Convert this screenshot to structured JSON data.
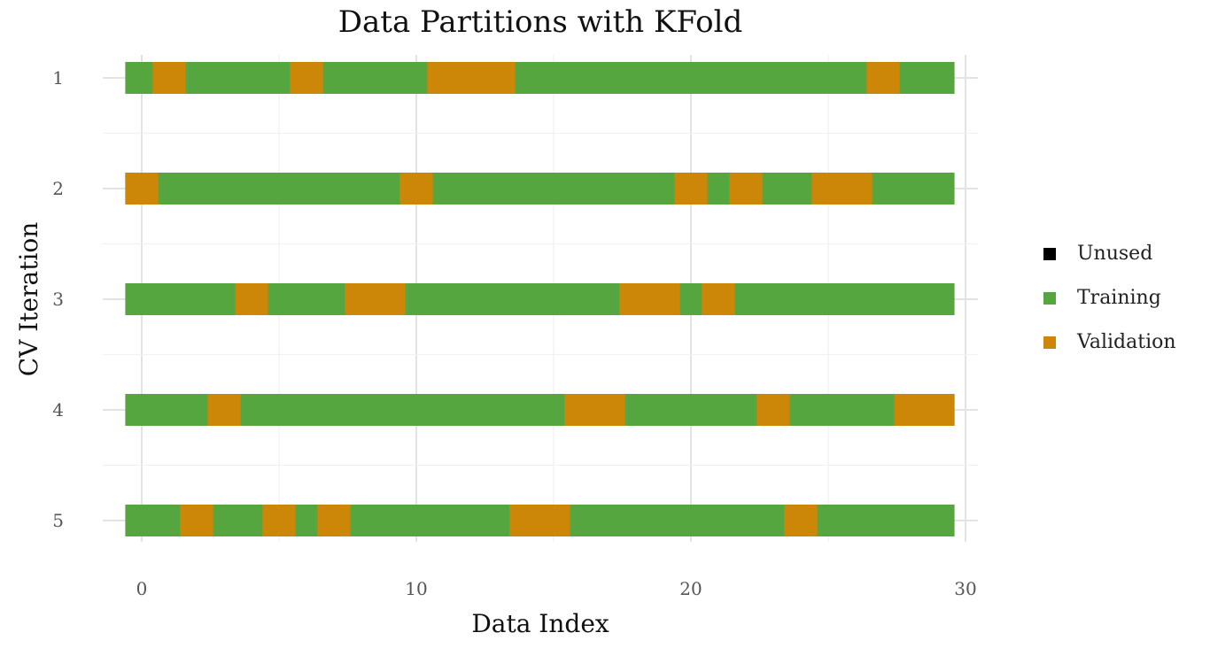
{
  "chart_data": {
    "type": "bar",
    "title": "Data Partitions with KFold",
    "xlabel": "Data Index",
    "ylabel": "CV Iteration",
    "xlim": [
      -0.6,
      30.05
    ],
    "xticks": [
      0,
      10,
      20,
      30
    ],
    "iterations": [
      "1",
      "2",
      "3",
      "4",
      "5"
    ],
    "n_samples": 30,
    "legend": {
      "position": "right",
      "items": [
        {
          "label": "Unused",
          "color": "#000000"
        },
        {
          "label": "Training",
          "color": "#56a640"
        },
        {
          "label": "Validation",
          "color": "#cd8708"
        }
      ]
    },
    "series": [
      {
        "iteration": "1",
        "validation_indices": [
          1,
          6,
          11,
          12,
          13,
          27
        ]
      },
      {
        "iteration": "2",
        "validation_indices": [
          0,
          10,
          20,
          22,
          25,
          26
        ]
      },
      {
        "iteration": "3",
        "validation_indices": [
          4,
          8,
          9,
          18,
          19,
          21
        ]
      },
      {
        "iteration": "4",
        "validation_indices": [
          3,
          16,
          17,
          23,
          28,
          29
        ]
      },
      {
        "iteration": "5",
        "validation_indices": [
          2,
          5,
          7,
          14,
          15,
          24
        ]
      }
    ],
    "grid": true
  }
}
